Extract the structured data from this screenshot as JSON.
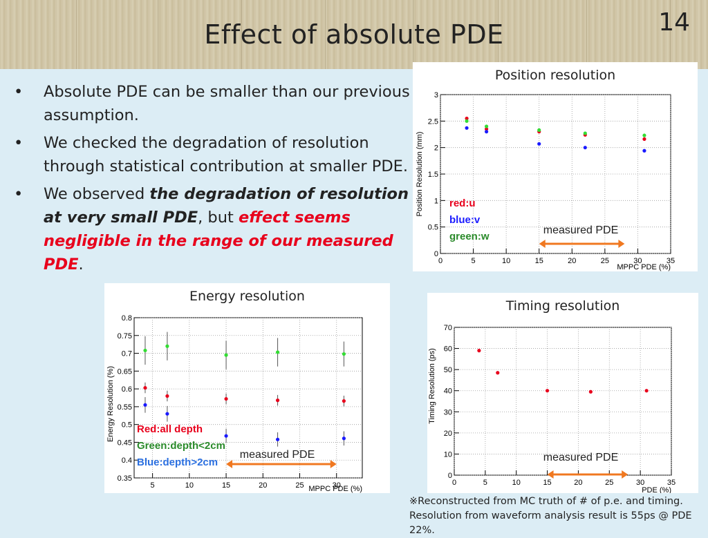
{
  "slide": {
    "title": "Effect of absolute PDE",
    "page_number": "14"
  },
  "bullets": {
    "b1": "Absolute PDE can be smaller than our previous assumption.",
    "b2": "We checked the degradation of resolution through statistical contribution at smaller PDE.",
    "b3_prefix": "We observed ",
    "b3_bold": "the degradation of resolution at very small PDE",
    "b3_mid": ", but ",
    "b3_red": "effect seems negligible in the range of our measured PDE",
    "b3_suffix": ".",
    "marker": "•"
  },
  "colors": {
    "red": "#e8001c",
    "blue": "#1a1aff",
    "green": "#33dd33",
    "orange": "#f07820",
    "label_green": "#2a8a2a",
    "label_blue": "#2a6fe0"
  },
  "chart_data": [
    {
      "type": "scatter",
      "title": "Position resolution",
      "xlabel": "MPPC PDE (%)",
      "ylabel": "Position Resolution (mm)",
      "xlim": [
        0,
        35
      ],
      "ylim": [
        0,
        3
      ],
      "xticks": [
        "0",
        "5",
        "10",
        "15",
        "20",
        "25",
        "30",
        "35"
      ],
      "yticks": [
        "0",
        "0.5",
        "1",
        "1.5",
        "2",
        "2.5",
        "3"
      ],
      "grid": true,
      "series": [
        {
          "name": "red:u",
          "color": "#e8001c",
          "x": [
            4,
            7,
            15,
            22,
            31
          ],
          "y": [
            2.55,
            2.35,
            2.3,
            2.24,
            2.16
          ]
        },
        {
          "name": "blue:v",
          "color": "#1a1aff",
          "x": [
            4,
            7,
            15,
            22,
            31
          ],
          "y": [
            2.37,
            2.3,
            2.07,
            2.0,
            1.94
          ]
        },
        {
          "name": "green:w",
          "color": "#33dd33",
          "x": [
            4,
            7,
            15,
            22,
            31
          ],
          "y": [
            2.5,
            2.4,
            2.33,
            2.27,
            2.23
          ]
        }
      ],
      "annotation": "measured PDE",
      "arrow_range": [
        15,
        28
      ]
    },
    {
      "type": "scatter",
      "title": "Energy resolution",
      "xlabel": "MPPC PDE (%)",
      "ylabel": "Energy Resolution (%)",
      "xlim": [
        2.5,
        33.5
      ],
      "ylim": [
        0.35,
        0.8
      ],
      "xticks": [
        "5",
        "10",
        "15",
        "20",
        "25",
        "30"
      ],
      "yticks": [
        "0.35",
        "0.4",
        "0.45",
        "0.5",
        "0.55",
        "0.6",
        "0.65",
        "0.7",
        "0.75",
        "0.8"
      ],
      "grid": true,
      "series": [
        {
          "name": "Red:all depth",
          "color": "#e8001c",
          "x": [
            4,
            7,
            15,
            22,
            31
          ],
          "y": [
            0.603,
            0.58,
            0.572,
            0.568,
            0.566
          ],
          "err": [
            0.015,
            0.015,
            0.015,
            0.015,
            0.015
          ]
        },
        {
          "name": "Green:depth<2cm",
          "color": "#33dd33",
          "x": [
            4,
            7,
            15,
            22,
            31
          ],
          "y": [
            0.708,
            0.72,
            0.695,
            0.703,
            0.698
          ],
          "err": [
            0.04,
            0.04,
            0.04,
            0.04,
            0.035
          ]
        },
        {
          "name": "Blue:depth>2cm",
          "color": "#1a1aff",
          "x": [
            4,
            7,
            15,
            22,
            31
          ],
          "y": [
            0.555,
            0.53,
            0.468,
            0.458,
            0.461
          ],
          "err": [
            0.022,
            0.022,
            0.02,
            0.02,
            0.02
          ]
        }
      ],
      "annotation": "measured PDE",
      "arrow_range": [
        15,
        30
      ]
    },
    {
      "type": "scatter",
      "title": "Timing resolution",
      "xlabel": "PDE (%)",
      "ylabel": "Timing Resolution (ps)",
      "xlim": [
        0,
        35
      ],
      "ylim": [
        0,
        70
      ],
      "xticks": [
        "0",
        "5",
        "10",
        "15",
        "20",
        "25",
        "30",
        "35"
      ],
      "yticks": [
        "0",
        "10",
        "20",
        "30",
        "40",
        "50",
        "60",
        "70"
      ],
      "grid": true,
      "series": [
        {
          "color": "#e8001c",
          "x": [
            4,
            7,
            15,
            22,
            31
          ],
          "y": [
            59,
            48.5,
            40,
            39.5,
            40
          ]
        }
      ],
      "annotation": "measured PDE",
      "arrow_range": [
        15,
        28
      ]
    }
  ],
  "footnote": {
    "line1": "※Reconstructed from MC truth of # of p.e. and timing.",
    "line2": "Resolution from waveform analysis result is 55ps @ PDE 22%."
  }
}
